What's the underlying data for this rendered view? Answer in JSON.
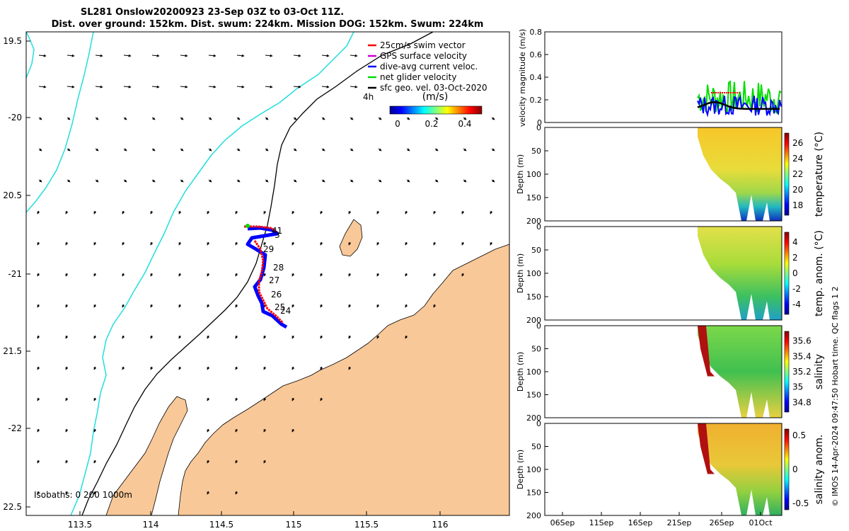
{
  "title": {
    "line1": "SL281 Onslow20200923 23-Sep 03Z to 03-Oct 11Z.",
    "line2": "Dist. over ground: 152km. Dist. swum: 224km. Mission DOG: 152km. Swum: 224km"
  },
  "map": {
    "lon_ticks": [
      "113.5",
      "114",
      "114.5",
      "115",
      "115.5",
      "116"
    ],
    "lat_ticks": [
      "19.5",
      "-20",
      "20.5",
      "-21",
      "21.5",
      "-22",
      "22.5"
    ],
    "legend": [
      {
        "label": "25cm/s swim vector",
        "color": "#ff0000"
      },
      {
        "label": "GPS surface velocity",
        "color": "#cc00cc"
      },
      {
        "label": "dive-avg current veloc.",
        "color": "#0000ff"
      },
      {
        "label": "net glider velocity",
        "color": "#00dd00"
      },
      {
        "label": "sfc geo. vel. 03-Oct-2020",
        "color": "#000000"
      }
    ],
    "interval_label": "4h",
    "colorbar_label": "(m/s)",
    "colorbar_ticks": [
      "0",
      "0.2",
      "0.4"
    ],
    "track_labels": [
      "41",
      "3",
      "29",
      "28",
      "27",
      "26",
      "25",
      "24"
    ],
    "isobaths_label": "Isobaths: 0   200  1000m",
    "colors": {
      "land": "#f9c898",
      "isobath_200": "#00e0e0",
      "isobath_0": "#000000"
    }
  },
  "panels": {
    "velocity": {
      "ylabel": "velocity magnitude (m/s)",
      "yticks": [
        "0",
        "0.2",
        "0.4",
        "0.6",
        "0.8"
      ]
    },
    "depth_ylabel": "Depth (m)",
    "depth_ticks": [
      "0",
      "50",
      "100",
      "150",
      "200"
    ],
    "temperature": {
      "label": "temperature (°C)",
      "ticks": [
        "26",
        "24",
        "22",
        "20",
        "18"
      ]
    },
    "temp_anom": {
      "label": "temp. anom. (°C)",
      "ticks": [
        "4",
        "2",
        "0",
        "-2",
        "-4"
      ]
    },
    "salinity": {
      "label": "salinity",
      "ticks": [
        "35.6",
        "35.4",
        "35.2",
        "35",
        "34.8"
      ]
    },
    "sal_anom": {
      "label": "salinity anom.",
      "ticks": [
        "0.5",
        "0",
        "-0.5"
      ]
    },
    "date_ticks": [
      "06Sep",
      "11Sep",
      "16Sep",
      "21Sep",
      "26Sep",
      "01Oct"
    ]
  },
  "credit": "© IMOS 14-Apr-2024 09:47:50 Hobart time. QC flags 1  2",
  "chart_data": {
    "type": "line",
    "title": "velocity magnitude (m/s)",
    "ylim": [
      0,
      0.8
    ],
    "x": [
      "06Sep",
      "11Sep",
      "16Sep",
      "21Sep",
      "26Sep",
      "01Oct"
    ],
    "series": [
      {
        "name": "net glider velocity",
        "color": "#00dd00"
      },
      {
        "name": "dive-avg current veloc.",
        "color": "#0000ff"
      },
      {
        "name": "25cm/s swim vector",
        "color": "#ff0000"
      },
      {
        "name": "sfc geo. vel.",
        "color": "#000000"
      }
    ]
  }
}
